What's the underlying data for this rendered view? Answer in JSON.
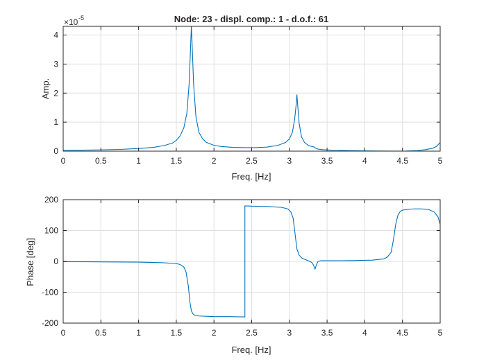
{
  "chart_data": [
    {
      "type": "line",
      "title": "Node: 23 - displ. comp.: 1 - d.o.f.: 61",
      "xlabel": "Freq. [Hz]",
      "ylabel": "Amp.",
      "y_exponent_label": "-5",
      "xlim": [
        0,
        5
      ],
      "ylim": [
        0,
        4.3
      ],
      "xticks": [
        0,
        0.5,
        1,
        1.5,
        2,
        2.5,
        3,
        3.5,
        4,
        4.5,
        5
      ],
      "xtick_labels": [
        "0",
        "0.5",
        "1",
        "1.5",
        "2",
        "2.5",
        "3",
        "3.5",
        "4",
        "4.5",
        "5"
      ],
      "yticks": [
        0,
        1,
        2,
        3,
        4
      ],
      "ytick_labels": [
        "0",
        "1",
        "2",
        "3",
        "4"
      ],
      "grid": true,
      "line_color": "#0072BD",
      "series": [
        {
          "x": [
            0,
            0.25,
            0.5,
            0.75,
            1.0,
            1.2,
            1.35,
            1.45,
            1.5,
            1.55,
            1.6,
            1.64,
            1.67,
            1.69,
            1.7,
            1.71,
            1.73,
            1.76,
            1.8,
            1.85,
            1.9,
            2.0,
            2.1,
            2.25,
            2.4,
            2.55,
            2.7,
            2.85,
            2.95,
            3.0,
            3.04,
            3.07,
            3.09,
            3.1,
            3.11,
            3.13,
            3.16,
            3.2,
            3.25,
            3.3,
            3.33,
            3.35,
            3.38,
            3.45,
            3.6,
            3.8,
            4.0,
            4.2,
            4.4,
            4.55,
            4.7,
            4.8,
            4.9,
            4.95,
            5.0
          ],
          "y": [
            0.03,
            0.035,
            0.045,
            0.06,
            0.09,
            0.13,
            0.2,
            0.28,
            0.37,
            0.52,
            0.8,
            1.3,
            2.3,
            3.6,
            4.3,
            3.7,
            2.3,
            1.2,
            0.65,
            0.42,
            0.3,
            0.2,
            0.16,
            0.13,
            0.12,
            0.12,
            0.14,
            0.2,
            0.3,
            0.42,
            0.65,
            1.1,
            1.6,
            1.95,
            1.6,
            0.95,
            0.5,
            0.3,
            0.2,
            0.16,
            0.14,
            0.1,
            0.07,
            0.05,
            0.03,
            0.02,
            0.01,
            0.005,
            0.003,
            0.005,
            0.02,
            0.05,
            0.1,
            0.16,
            0.3
          ]
        }
      ]
    },
    {
      "type": "line",
      "xlabel": "Freq. [Hz]",
      "ylabel": "Phase [deg]",
      "xlim": [
        0,
        5
      ],
      "ylim": [
        -200,
        200
      ],
      "xticks": [
        0,
        0.5,
        1,
        1.5,
        2,
        2.5,
        3,
        3.5,
        4,
        4.5,
        5
      ],
      "xtick_labels": [
        "0",
        "0.5",
        "1",
        "1.5",
        "2",
        "2.5",
        "3",
        "3.5",
        "4",
        "4.5",
        "5"
      ],
      "yticks": [
        -200,
        -100,
        0,
        100,
        200
      ],
      "ytick_labels": [
        "-200",
        "-100",
        "0",
        "100",
        "200"
      ],
      "grid": true,
      "line_color": "#0072BD",
      "series": [
        {
          "x": [
            0,
            0.5,
            1.0,
            1.3,
            1.5,
            1.55,
            1.6,
            1.63,
            1.66,
            1.68,
            1.7,
            1.72,
            1.75,
            1.8,
            1.9,
            2.0,
            2.2,
            2.4,
            2.41,
            2.41,
            2.5,
            2.7,
            2.9,
            2.98,
            3.02,
            3.05,
            3.08,
            3.1,
            3.13,
            3.17,
            3.22,
            3.27,
            3.3,
            3.32,
            3.34,
            3.36,
            3.38,
            3.42,
            3.5,
            3.7,
            3.9,
            4.1,
            4.25,
            4.3,
            4.35,
            4.38,
            4.41,
            4.44,
            4.47,
            4.5,
            4.55,
            4.65,
            4.75,
            4.85,
            4.92,
            4.97,
            5.0
          ],
          "y": [
            -1,
            -1.5,
            -2.5,
            -4,
            -7,
            -10,
            -18,
            -35,
            -80,
            -130,
            -160,
            -170,
            -175,
            -177,
            -178,
            -179,
            -179,
            -180,
            -180,
            180,
            179,
            178,
            175,
            170,
            160,
            140,
            80,
            40,
            20,
            10,
            5,
            0,
            -4,
            -12,
            -25,
            -10,
            0,
            2,
            2,
            2,
            3,
            4,
            8,
            14,
            30,
            70,
            120,
            150,
            162,
            166,
            168,
            170,
            170,
            168,
            160,
            145,
            120
          ]
        }
      ]
    }
  ]
}
